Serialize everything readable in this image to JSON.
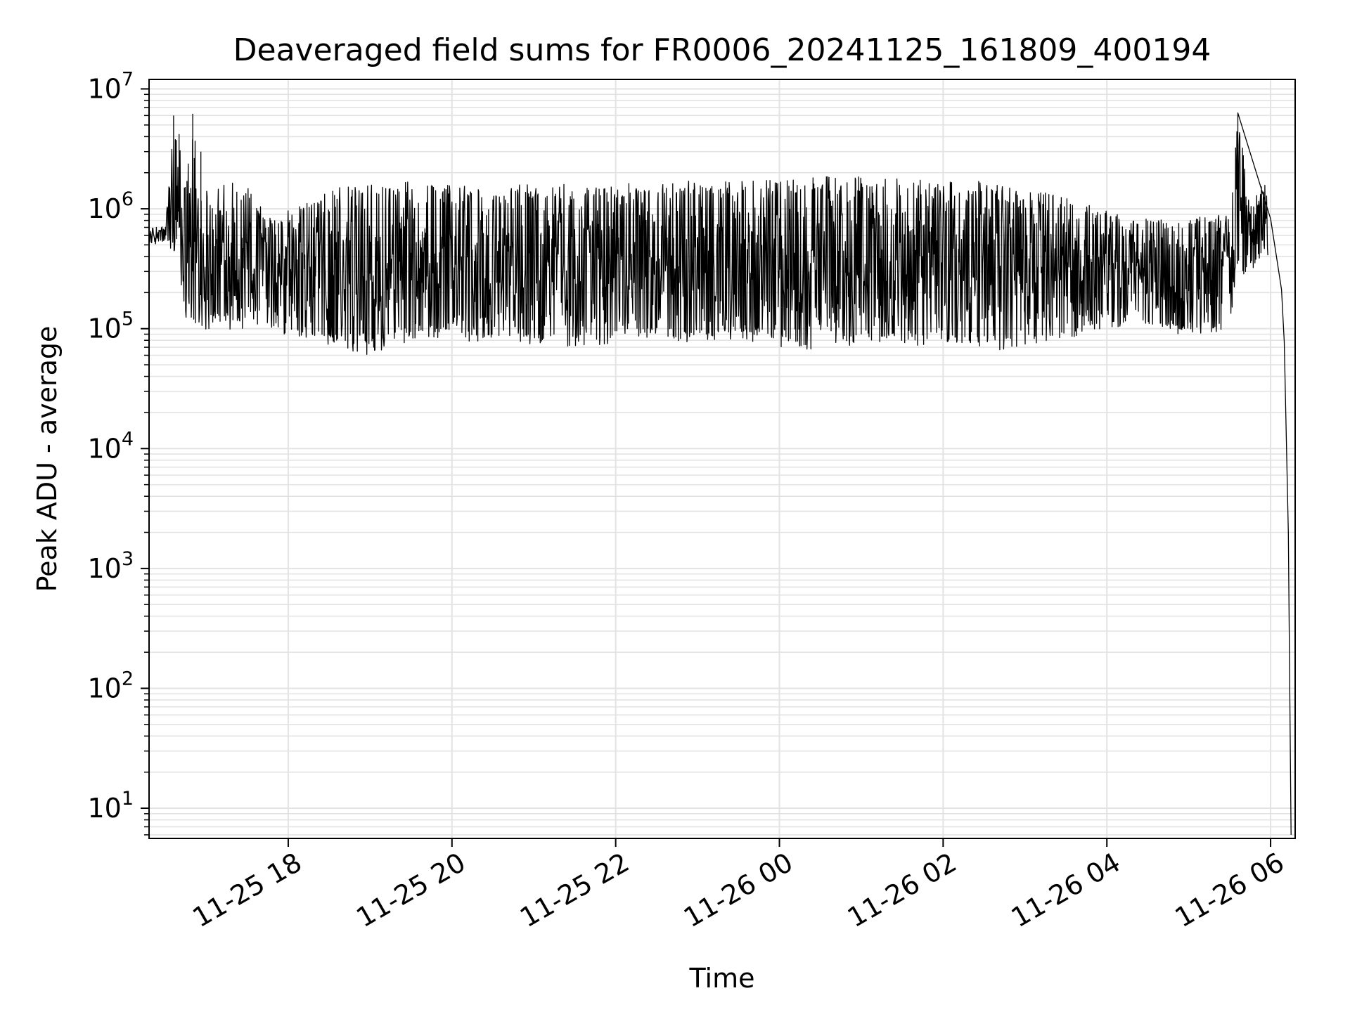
{
  "chart_data": {
    "type": "line",
    "title": "Deaveraged field sums for FR0006_20241125_161809_400194",
    "xlabel": "Time",
    "ylabel": "Peak ADU - average",
    "yscale": "log",
    "ylim": [
      5.6,
      12000000
    ],
    "xlim": [
      "2024-11-25 16:18",
      "2024-11-26 06:18"
    ],
    "x_ticks": [
      "2024-11-25 18:00",
      "2024-11-25 20:00",
      "2024-11-25 22:00",
      "2024-11-26 00:00",
      "2024-11-26 02:00",
      "2024-11-26 04:00",
      "2024-11-26 06:00"
    ],
    "x_tick_labels": [
      "11-25 18",
      "11-25 20",
      "11-25 22",
      "11-26 00",
      "11-26 02",
      "11-26 04",
      "11-26 06"
    ],
    "y_ticks": [
      10,
      100,
      1000,
      10000,
      100000,
      1000000,
      10000000
    ],
    "y_tick_labels": [
      {
        "base": "10",
        "exp": "1"
      },
      {
        "base": "10",
        "exp": "2"
      },
      {
        "base": "10",
        "exp": "3"
      },
      {
        "base": "10",
        "exp": "4"
      },
      {
        "base": "10",
        "exp": "5"
      },
      {
        "base": "10",
        "exp": "6"
      },
      {
        "base": "10",
        "exp": "7"
      }
    ],
    "grid": true,
    "line_color": "#000000",
    "series": [
      {
        "values_approximate": "dense noisy trace sampled as envelope; x in local time",
        "x": [
          "2024-11-25 16:18",
          "2024-11-25 16:30",
          "2024-11-25 16:36",
          "2024-11-25 16:40",
          "2024-11-25 16:45",
          "2024-11-25 16:50",
          "2024-11-25 16:56",
          "2024-11-25 17:05",
          "2024-11-25 17:15",
          "2024-11-25 17:25",
          "2024-11-25 17:35",
          "2024-11-25 17:45",
          "2024-11-25 18:00",
          "2024-11-25 18:30",
          "2024-11-25 19:00",
          "2024-11-25 19:30",
          "2024-11-25 20:00",
          "2024-11-25 20:30",
          "2024-11-25 21:00",
          "2024-11-25 21:30",
          "2024-11-25 22:00",
          "2024-11-25 22:30",
          "2024-11-25 23:00",
          "2024-11-25 23:30",
          "2024-11-26 00:00",
          "2024-11-26 00:30",
          "2024-11-26 01:00",
          "2024-11-26 01:30",
          "2024-11-26 02:00",
          "2024-11-26 02:30",
          "2024-11-26 03:00",
          "2024-11-26 03:30",
          "2024-11-26 04:00",
          "2024-11-26 04:30",
          "2024-11-26 05:00",
          "2024-11-26 05:30",
          "2024-11-26 05:36",
          "2024-11-26 05:45",
          "2024-11-26 05:55",
          "2024-11-26 06:00",
          "2024-11-26 06:05",
          "2024-11-26 06:08",
          "2024-11-26 06:10",
          "2024-11-26 06:13",
          "2024-11-26 06:15"
        ],
        "y_high": [
          700000,
          750000,
          6000000,
          4200000,
          1500000,
          6200000,
          3000000,
          1600000,
          1900000,
          1800000,
          1300000,
          900000,
          1000000,
          1500000,
          1600000,
          1700000,
          1600000,
          1650000,
          1600000,
          1650000,
          1600000,
          1750000,
          1700000,
          1750000,
          1800000,
          1850000,
          1900000,
          1800000,
          1750000,
          1700000,
          1500000,
          1300000,
          1000000,
          900000,
          850000,
          900000,
          6300000,
          1100000,
          1800000,
          1700000,
          500000,
          300000,
          200000,
          20000,
          6
        ],
        "y_low": [
          500000,
          500000,
          400000,
          250000,
          120000,
          100000,
          90000,
          100000,
          100000,
          95000,
          90000,
          90000,
          85000,
          70000,
          60000,
          80000,
          85000,
          70000,
          75000,
          70000,
          75000,
          80000,
          75000,
          80000,
          70000,
          65000,
          75000,
          70000,
          75000,
          65000,
          65000,
          80000,
          100000,
          90000,
          85000,
          90000,
          300000,
          260000,
          400000,
          400000,
          250000,
          150000,
          30000,
          200,
          6
        ]
      }
    ]
  }
}
